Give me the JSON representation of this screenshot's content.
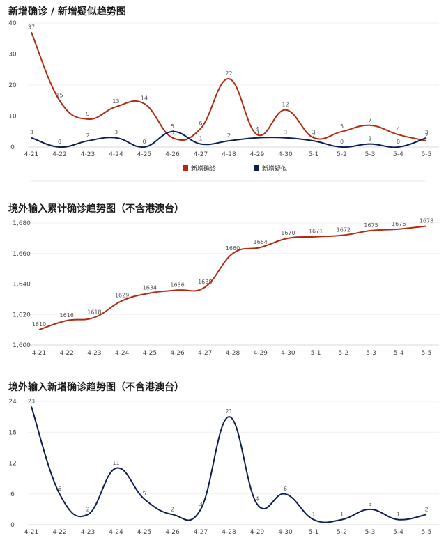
{
  "charts": [
    {
      "title": "新增确诊 / 新增疑似趋势图",
      "chart_data": {
        "type": "line",
        "categories": [
          "4-21",
          "4-22",
          "4-23",
          "4-24",
          "4-25",
          "4-26",
          "4-27",
          "4-28",
          "4-29",
          "4-30",
          "5-1",
          "5-2",
          "5-3",
          "5-4",
          "5-5"
        ],
        "ylim": [
          0,
          40
        ],
        "yticks": [
          0,
          10,
          20,
          30,
          40
        ],
        "ytick_labels": [
          "0",
          "10",
          "20",
          "30",
          "40"
        ],
        "grid": true,
        "legend": "bottom-center",
        "series": [
          {
            "name": "新增确诊",
            "color": "#b22a12",
            "values": [
              37,
              15,
              9,
              13,
              14,
              3,
              6,
              22,
              4,
              12,
              3,
              5,
              7,
              4,
              2
            ]
          },
          {
            "name": "新增疑似",
            "color": "#0d1f4d",
            "values": [
              3,
              0,
              2,
              3,
              0,
              5,
              1,
              2,
              3,
              3,
              2,
              0,
              1,
              0,
              3
            ]
          }
        ]
      }
    },
    {
      "title": "境外输入累计确诊趋势图（不含港澳台）",
      "chart_data": {
        "type": "line",
        "categories": [
          "4-21",
          "4-22",
          "4-23",
          "4-24",
          "4-25",
          "4-26",
          "4-27",
          "4-28",
          "4-29",
          "4-30",
          "5-1",
          "5-2",
          "5-3",
          "5-4",
          "5-5"
        ],
        "ylim": [
          1600,
          1680
        ],
        "yticks": [
          1600,
          1620,
          1640,
          1660,
          1680
        ],
        "ytick_labels": [
          "1,600",
          "1,620",
          "1,640",
          "1,660",
          "1,680"
        ],
        "grid": true,
        "series": [
          {
            "color": "#b22a12",
            "values": [
              1610,
              1616,
              1618,
              1629,
              1634,
              1636,
              1638,
              1660,
              1664,
              1670,
              1671,
              1672,
              1675,
              1676,
              1678
            ]
          }
        ]
      }
    },
    {
      "title": "境外输入新增确诊趋势图（不含港澳台）",
      "chart_data": {
        "type": "line",
        "categories": [
          "4-21",
          "4-22",
          "4-23",
          "4-24",
          "4-25",
          "4-26",
          "4-27",
          "4-28",
          "4-29",
          "4-30",
          "5-1",
          "5-2",
          "5-3",
          "5-4",
          "5-5"
        ],
        "ylim": [
          0,
          24
        ],
        "yticks": [
          0,
          6,
          12,
          18,
          24
        ],
        "ytick_labels": [
          "0",
          "6",
          "12",
          "18",
          "24"
        ],
        "grid": true,
        "series": [
          {
            "color": "#0d1f4d",
            "values": [
              23,
              6,
              2,
              11,
              5,
              2,
              3,
              21,
              4,
              6,
              1,
              1,
              3,
              1,
              2
            ]
          }
        ]
      }
    }
  ]
}
